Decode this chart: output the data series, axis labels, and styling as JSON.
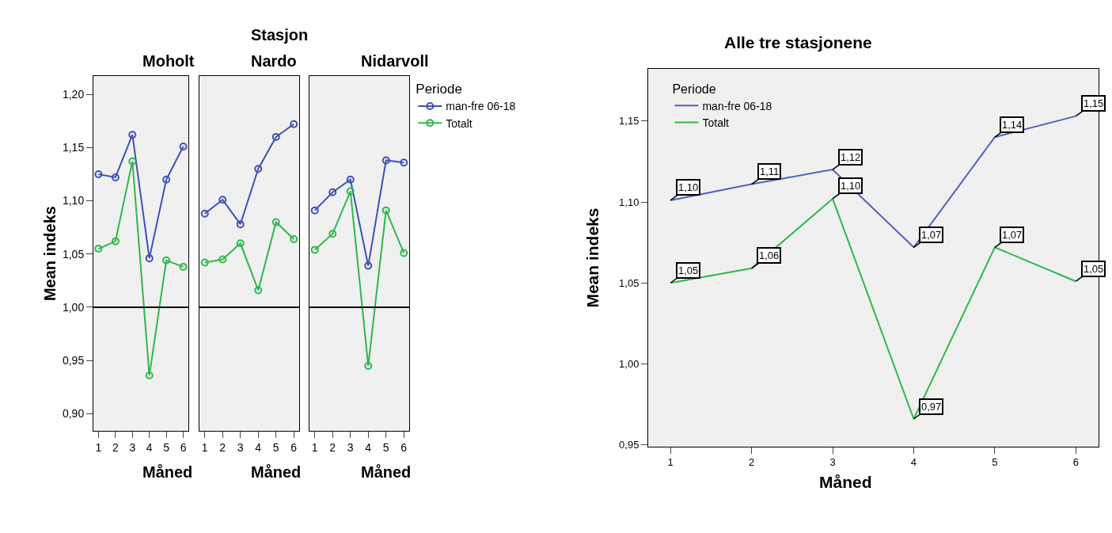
{
  "chart_data": [
    {
      "type": "line",
      "title": "Moholt",
      "xlabel": "Måned",
      "ylabel": "Mean indeks",
      "x": [
        1,
        2,
        3,
        4,
        5,
        6
      ],
      "series": [
        {
          "color": "#3f51b5",
          "values": [
            1.125,
            1.122,
            1.162,
            1.046,
            1.12,
            1.151
          ]
        },
        {
          "color": "#2eb84a",
          "values": [
            1.055,
            1.062,
            1.137,
            0.936,
            1.044,
            1.038
          ]
        }
      ],
      "xlim": [
        0.7,
        6.3
      ],
      "xticks": [
        1,
        2,
        3,
        4,
        5,
        6
      ],
      "ylim": [
        0.884,
        1.217
      ],
      "yticks": [
        {
          "value": 0.9,
          "label": "0,90"
        },
        {
          "value": 0.95,
          "label": "0,95"
        },
        {
          "value": 1.0,
          "label": "1,00"
        },
        {
          "value": 1.05,
          "label": "1,05"
        },
        {
          "value": 1.1,
          "label": "1,10"
        },
        {
          "value": 1.15,
          "label": "1,15"
        },
        {
          "value": 1.2,
          "label": "1,20"
        }
      ],
      "ref_lines": [
        {
          "axis": "y",
          "value": 1.0,
          "color": "#000000"
        }
      ],
      "marker": "circle",
      "grid": false,
      "legend": false
    },
    {
      "type": "line",
      "title": "Nardo",
      "annotations": [
        "Stasjon"
      ],
      "xlabel": "Måned",
      "x": [
        1,
        2,
        3,
        4,
        5,
        6
      ],
      "series": [
        {
          "color": "#3f51b5",
          "values": [
            1.088,
            1.101,
            1.078,
            1.13,
            1.16,
            1.172
          ]
        },
        {
          "color": "#2eb84a",
          "values": [
            1.042,
            1.045,
            1.06,
            1.016,
            1.08,
            1.064
          ]
        }
      ],
      "xlim": [
        0.7,
        6.3
      ],
      "xticks": [
        1,
        2,
        3,
        4,
        5,
        6
      ],
      "ylim": [
        0.884,
        1.217
      ],
      "tick_labels": "x",
      "ref_lines": [
        {
          "axis": "y",
          "value": 1.0,
          "color": "#000000"
        }
      ],
      "marker": "circle",
      "grid": false,
      "legend": false
    },
    {
      "type": "line",
      "title": "Nidarvoll",
      "xlabel": "Måned",
      "x": [
        1,
        2,
        3,
        4,
        5,
        6
      ],
      "legend_title": "Periode",
      "series": [
        {
          "name": "man-fre 06-18",
          "color": "#3f51b5",
          "values": [
            1.091,
            1.108,
            1.12,
            1.039,
            1.138,
            1.136
          ]
        },
        {
          "name": "Totalt",
          "color": "#2eb84a",
          "values": [
            1.054,
            1.069,
            1.109,
            0.945,
            1.091,
            1.051
          ]
        }
      ],
      "xlim": [
        0.7,
        6.3
      ],
      "xticks": [
        1,
        2,
        3,
        4,
        5,
        6
      ],
      "ylim": [
        0.884,
        1.217
      ],
      "tick_labels": "x",
      "ref_lines": [
        {
          "axis": "y",
          "value": 1.0,
          "color": "#000000"
        }
      ],
      "marker": "circle",
      "grid": false,
      "legend": "right"
    },
    {
      "type": "line",
      "title": "Alle tre stasjonene",
      "xlabel": "Måned",
      "ylabel": "Mean indeks",
      "x": [
        1,
        2,
        3,
        4,
        5,
        6
      ],
      "legend_title": "Periode",
      "series": [
        {
          "name": "man-fre 06-18",
          "color": "#5060c0",
          "values": [
            1.101,
            1.111,
            1.12,
            1.072,
            1.14,
            1.153
          ],
          "value_labels": [
            "1,10",
            "1,11",
            "1,12",
            "1,07",
            "1,14",
            "1,15"
          ]
        },
        {
          "name": "Totalt",
          "color": "#2eb84a",
          "values": [
            1.05,
            1.059,
            1.102,
            0.966,
            1.072,
            1.051
          ],
          "value_labels": [
            "1,05",
            "1,06",
            "1,10",
            "0,97",
            "1,07",
            "1,05"
          ]
        }
      ],
      "xlim": [
        0.725,
        6.28
      ],
      "xticks": [
        1,
        2,
        3,
        4,
        5,
        6
      ],
      "ylim": [
        0.949,
        1.182
      ],
      "yticks": [
        {
          "value": 0.95,
          "label": "0,95"
        },
        {
          "value": 1.0,
          "label": "1,00"
        },
        {
          "value": 1.05,
          "label": "1,05"
        },
        {
          "value": 1.1,
          "label": "1,10"
        },
        {
          "value": 1.15,
          "label": "1,15"
        }
      ],
      "marker": "none",
      "grid": false,
      "legend": "top left"
    }
  ]
}
